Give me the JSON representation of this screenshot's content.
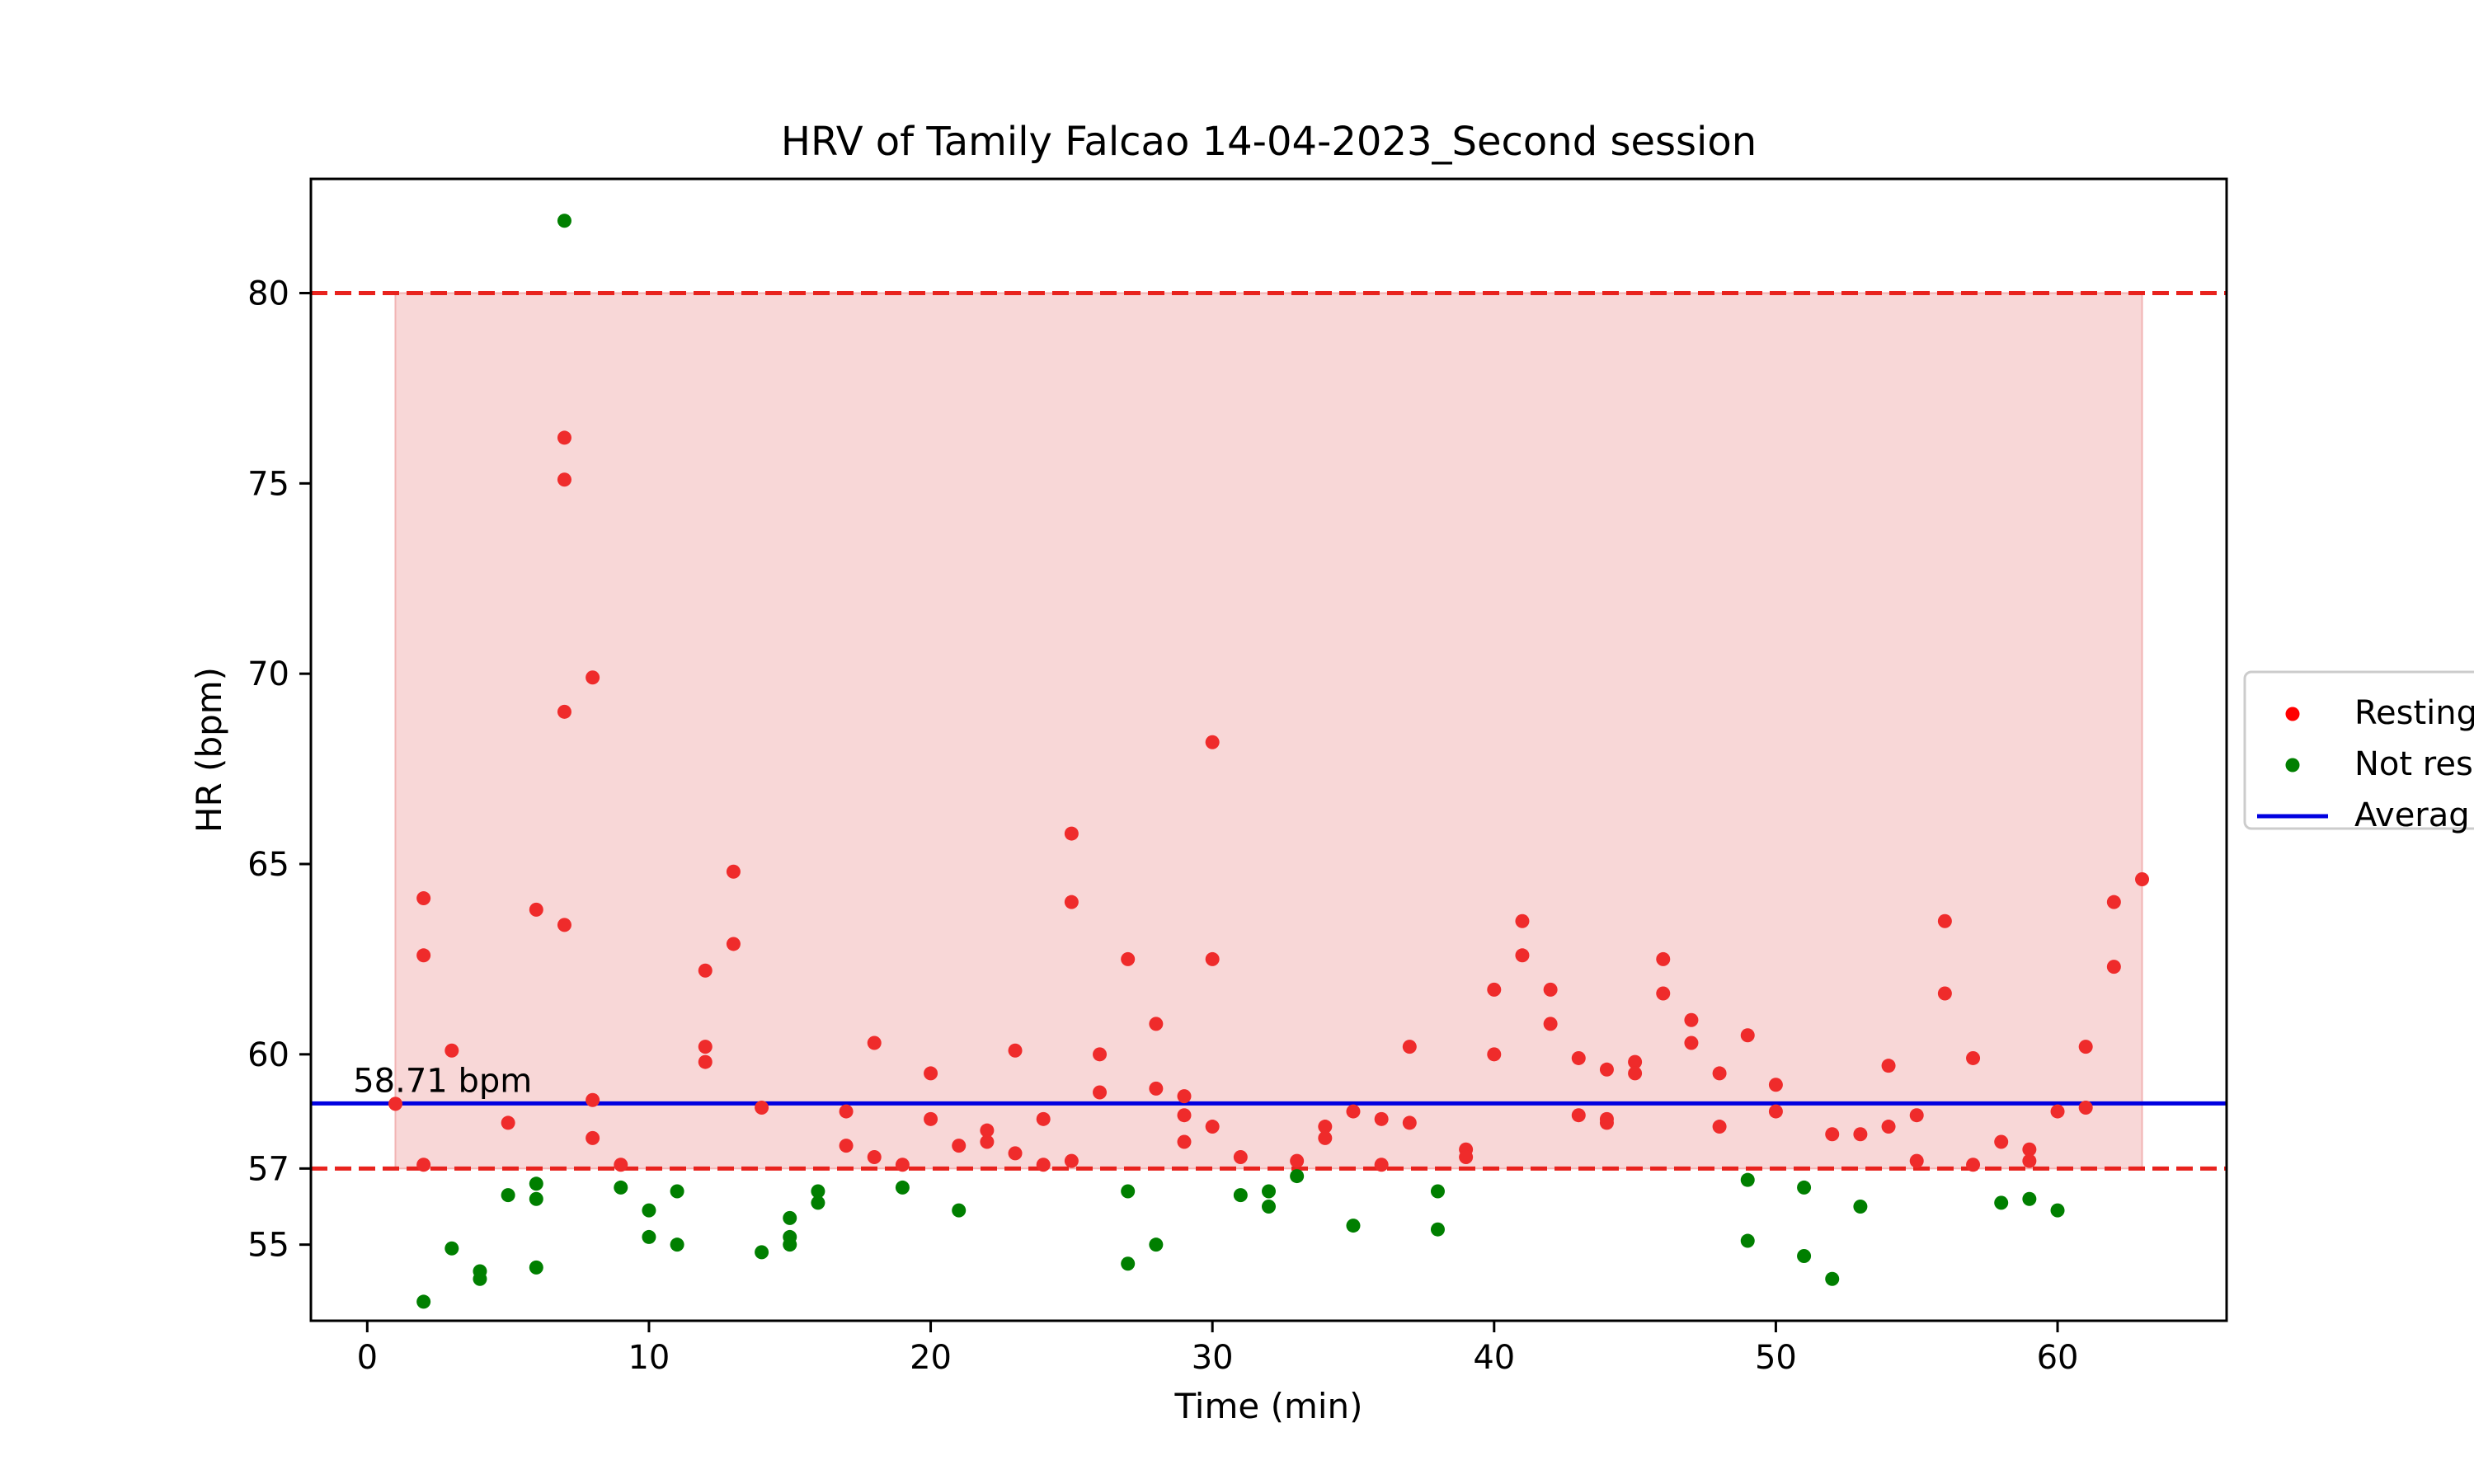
{
  "chart_data": {
    "type": "scatter",
    "title": "HRV of Tamily Falcao 14-04-2023_Second session",
    "xlabel": "Time (min)",
    "ylabel": "HR (bpm)",
    "xlim": [
      -2,
      66
    ],
    "ylim": [
      53,
      83
    ],
    "xticks": [
      0,
      10,
      20,
      30,
      40,
      50,
      60
    ],
    "yticks": [
      55,
      57,
      60,
      65,
      70,
      75,
      80
    ],
    "grid": false,
    "legend_position": "center-right, partially clipped",
    "shaded_band": {
      "x": [
        1,
        63
      ],
      "y": [
        57,
        80
      ],
      "color": "#f8d7d7"
    },
    "threshold_lines": [
      {
        "y": 80,
        "color": "#e8231e",
        "style": "dashed"
      },
      {
        "y": 57,
        "color": "#e8231e",
        "style": "dashed"
      }
    ],
    "average": {
      "y": 58.71,
      "label": "58.71 bpm",
      "color": "#0000e0"
    },
    "legend": [
      {
        "name": "Resting",
        "kind": "point",
        "color": "#ff0000"
      },
      {
        "name": "Not res",
        "kind": "point",
        "color": "#007f00"
      },
      {
        "name": "Averag",
        "kind": "line",
        "color": "#0000e0"
      }
    ],
    "series": [
      {
        "name": "Resting",
        "color": "#ef2b2b",
        "points": [
          [
            1,
            58.7
          ],
          [
            2,
            64.1
          ],
          [
            2,
            62.6
          ],
          [
            2,
            57.1
          ],
          [
            3,
            60.1
          ],
          [
            5,
            58.2
          ],
          [
            6,
            63.8
          ],
          [
            7,
            76.2
          ],
          [
            7,
            75.1
          ],
          [
            7,
            69
          ],
          [
            7,
            63.4
          ],
          [
            8,
            69.9
          ],
          [
            8,
            58.8
          ],
          [
            8,
            57.8
          ],
          [
            9,
            57.1
          ],
          [
            12,
            62.2
          ],
          [
            12,
            60.2
          ],
          [
            12,
            59.8
          ],
          [
            13,
            64.8
          ],
          [
            13,
            62.9
          ],
          [
            14,
            58.6
          ],
          [
            17,
            58.5
          ],
          [
            17,
            57.6
          ],
          [
            18,
            60.3
          ],
          [
            18,
            57.3
          ],
          [
            19,
            57.1
          ],
          [
            20,
            59.5
          ],
          [
            20,
            58.3
          ],
          [
            21,
            57.6
          ],
          [
            22,
            58
          ],
          [
            22,
            57.7
          ],
          [
            23,
            60.1
          ],
          [
            23,
            57.4
          ],
          [
            24,
            58.3
          ],
          [
            24,
            57.1
          ],
          [
            25,
            65.8
          ],
          [
            25,
            64
          ],
          [
            25,
            57.2
          ],
          [
            26,
            60
          ],
          [
            26,
            59
          ],
          [
            27,
            62.5
          ],
          [
            28,
            60.8
          ],
          [
            28,
            59.1
          ],
          [
            29,
            58.9
          ],
          [
            29,
            58.4
          ],
          [
            29,
            57.7
          ],
          [
            30,
            68.2
          ],
          [
            30,
            62.5
          ],
          [
            30,
            58.1
          ],
          [
            31,
            57.3
          ],
          [
            33,
            57.2
          ],
          [
            34,
            58.1
          ],
          [
            34,
            57.8
          ],
          [
            35,
            58.5
          ],
          [
            36,
            58.3
          ],
          [
            36,
            57.1
          ],
          [
            37,
            60.2
          ],
          [
            37,
            58.2
          ],
          [
            39,
            57.5
          ],
          [
            39,
            57.3
          ],
          [
            40,
            61.7
          ],
          [
            40,
            60
          ],
          [
            41,
            63.5
          ],
          [
            41,
            62.6
          ],
          [
            42,
            61.7
          ],
          [
            42,
            60.8
          ],
          [
            43,
            59.9
          ],
          [
            43,
            58.4
          ],
          [
            44,
            59.6
          ],
          [
            44,
            58.3
          ],
          [
            44,
            58.2
          ],
          [
            45,
            59.8
          ],
          [
            45,
            59.5
          ],
          [
            46,
            62.5
          ],
          [
            46,
            61.6
          ],
          [
            47,
            60.9
          ],
          [
            47,
            60.3
          ],
          [
            48,
            59.5
          ],
          [
            48,
            58.1
          ],
          [
            49,
            60.5
          ],
          [
            50,
            59.2
          ],
          [
            50,
            58.5
          ],
          [
            52,
            57.9
          ],
          [
            53,
            57.9
          ],
          [
            54,
            59.7
          ],
          [
            54,
            58.1
          ],
          [
            55,
            58.4
          ],
          [
            55,
            57.2
          ],
          [
            56,
            63.5
          ],
          [
            56,
            61.6
          ],
          [
            57,
            59.9
          ],
          [
            57,
            57.1
          ],
          [
            58,
            57.7
          ],
          [
            59,
            57.5
          ],
          [
            59,
            57.2
          ],
          [
            60,
            58.5
          ],
          [
            61,
            60.2
          ],
          [
            61,
            58.6
          ],
          [
            62,
            64
          ],
          [
            62,
            62.3
          ],
          [
            63,
            64.6
          ]
        ]
      },
      {
        "name": "Not res",
        "color": "#007f00",
        "points": [
          [
            2,
            53.5
          ],
          [
            3,
            54.9
          ],
          [
            4,
            54.3
          ],
          [
            4,
            54.1
          ],
          [
            5,
            56.3
          ],
          [
            6,
            56.6
          ],
          [
            6,
            56.2
          ],
          [
            6,
            54.4
          ],
          [
            7,
            81.9
          ],
          [
            9,
            56.5
          ],
          [
            10,
            55.9
          ],
          [
            10,
            55.2
          ],
          [
            11,
            56.4
          ],
          [
            11,
            55
          ],
          [
            14,
            54.8
          ],
          [
            15,
            55.7
          ],
          [
            15,
            55.2
          ],
          [
            15,
            55
          ],
          [
            16,
            56.4
          ],
          [
            16,
            56.1
          ],
          [
            19,
            56.5
          ],
          [
            21,
            55.9
          ],
          [
            27,
            56.4
          ],
          [
            27,
            54.5
          ],
          [
            28,
            55
          ],
          [
            31,
            56.3
          ],
          [
            32,
            56.4
          ],
          [
            32,
            56
          ],
          [
            33,
            56.8
          ],
          [
            35,
            55.5
          ],
          [
            38,
            56.4
          ],
          [
            38,
            55.4
          ],
          [
            49,
            56.7
          ],
          [
            49,
            55.1
          ],
          [
            51,
            56.5
          ],
          [
            51,
            54.7
          ],
          [
            52,
            54.1
          ],
          [
            53,
            56
          ],
          [
            58,
            56.1
          ],
          [
            59,
            56.2
          ],
          [
            60,
            55.9
          ]
        ]
      }
    ]
  }
}
